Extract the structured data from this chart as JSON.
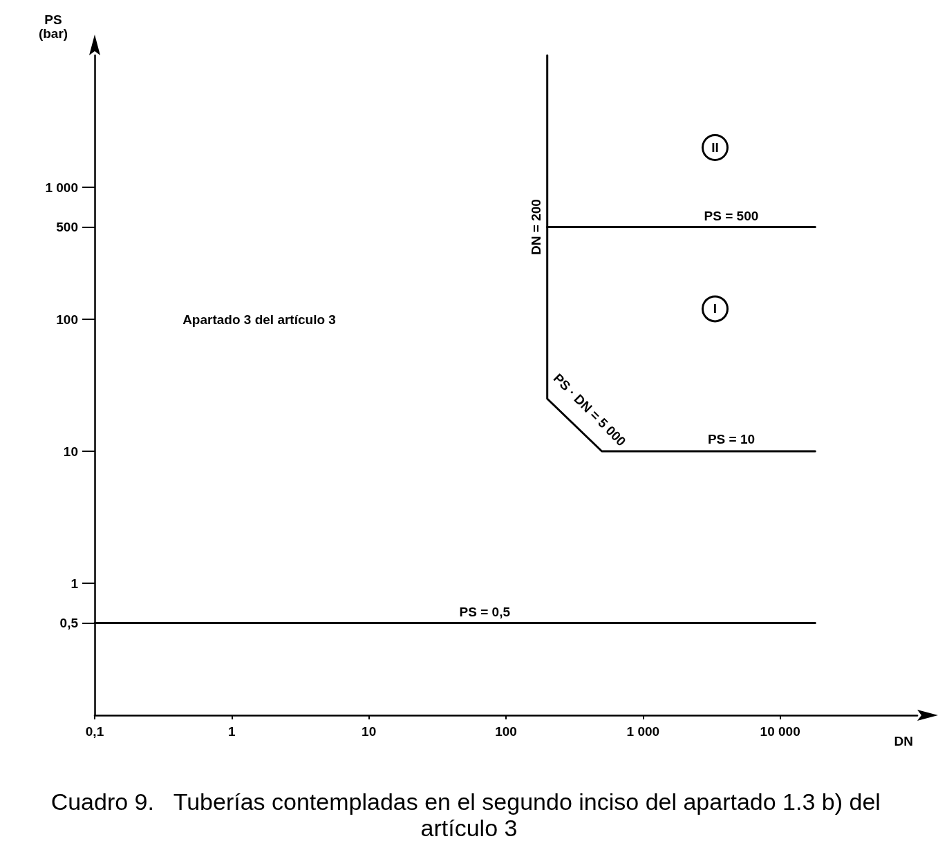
{
  "chart_data": {
    "type": "line",
    "title": "Cuadro 9.   Tuberías contempladas en el segundo inciso del apartado 1.3 b) del artículo 3",
    "xlabel": "DN",
    "ylabel": "PS\n(bar)",
    "log": "xy",
    "grid": false,
    "marker": "none",
    "line_style": "solid",
    "xlim": [
      0.1,
      100000
    ],
    "xticks": [
      {
        "value": 0.1,
        "label": "0,1"
      },
      1,
      10,
      100,
      {
        "value": 1000,
        "label": "1 000"
      },
      {
        "value": 10000,
        "label": "10 000"
      }
    ],
    "ylim": [
      0.1,
      10000
    ],
    "yticks": [
      {
        "value": 0.5,
        "label": "0,5"
      },
      1,
      10,
      100,
      500,
      {
        "value": 1000,
        "label": "1 000"
      }
    ],
    "series": [
      {
        "color": "#000000",
        "x": [
          0.1,
          18000
        ],
        "values": [
          0.5,
          0.5
        ]
      },
      {
        "color": "#000000",
        "x": [
          200,
          200,
          500,
          18000
        ],
        "values": [
          10000,
          25,
          10,
          10
        ]
      },
      {
        "color": "#000000",
        "x": [
          200,
          18000
        ],
        "values": [
          500,
          500
        ]
      }
    ],
    "annotations": [
      {
        "text": "PS = 0,5",
        "x": 70,
        "y": 0.5
      },
      {
        "text": "PS = 500",
        "x": 4400,
        "y": 500
      },
      {
        "text": "PS = 10",
        "x": 4400,
        "y": 10
      },
      {
        "text": "DN = 200",
        "x": 200,
        "y": 500
      },
      {
        "text": "PS · DN = 5 000",
        "x": 316,
        "y": 15.8
      },
      "Apartado 3 del artículo 3",
      {
        "text": "II",
        "x": 3350,
        "y": 2000
      },
      {
        "text": "I",
        "x": 3350,
        "y": 120
      }
    ]
  }
}
